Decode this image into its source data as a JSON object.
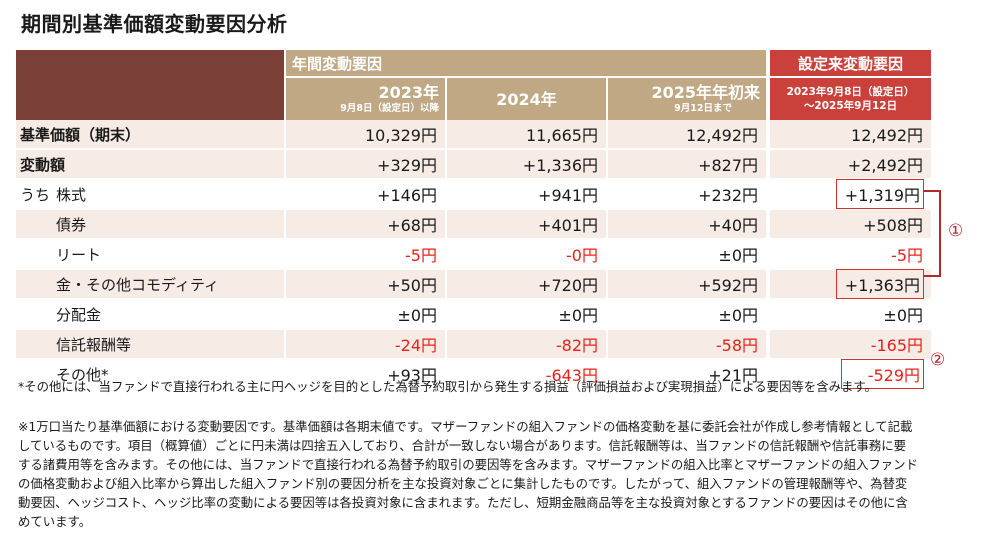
{
  "title": "期間別基準価額変動要因分析",
  "header": {
    "annual_label": "年間変動要因",
    "since_label": "設定来変動要因",
    "col1_year": "2023年",
    "col1_note": "9月8日（設定日）以降",
    "col2_year": "2024年",
    "col3_year": "2025年年初来",
    "col3_note": "9月12日まで",
    "since_note_line1": "2023年9月8日（設定日）",
    "since_note_line2": "～2025年9月12日"
  },
  "rows": [
    {
      "prefix": "",
      "label": "基準価額（期末）",
      "values": [
        "10,329円",
        "11,665円",
        "12,492円",
        "12,492円"
      ]
    },
    {
      "prefix": "",
      "label": "変動額",
      "values": [
        "+329円",
        "+1,336円",
        "+827円",
        "+2,492円"
      ]
    },
    {
      "prefix": "うち",
      "label": "株式",
      "values": [
        "+146円",
        "+941円",
        "+232円",
        "+1,319円"
      ]
    },
    {
      "prefix": "",
      "label": "債券",
      "values": [
        "+68円",
        "+401円",
        "+40円",
        "+508円"
      ]
    },
    {
      "prefix": "",
      "label": "リート",
      "values": [
        "-5円",
        "-0円",
        "±0円",
        "-5円"
      ]
    },
    {
      "prefix": "",
      "label": "金・その他コモディティ",
      "values": [
        "+50円",
        "+720円",
        "+592円",
        "+1,363円"
      ]
    },
    {
      "prefix": "",
      "label": "分配金",
      "values": [
        "±0円",
        "±0円",
        "±0円",
        "±0円"
      ]
    },
    {
      "prefix": "",
      "label": "信託報酬等",
      "values": [
        "-24円",
        "-82円",
        "-58円",
        "-165円"
      ]
    },
    {
      "prefix": "",
      "label": "その他*",
      "values": [
        "+93円",
        "-643円",
        "+21円",
        "-529円"
      ]
    }
  ],
  "annotations": {
    "circle1": "①",
    "circle2": "②"
  },
  "notes": {
    "footnote_a": "*その他には、当ファンドで直接行われる主に円ヘッジを目的とした為替予約取引から発生する損益（評価損益および実現損益）による要因等を含みます。",
    "footnote_b": "※1万口当たり基準価額における変動要因です。基準価額は各期末値です。マザーファンドの組入ファンドの価格変動を基に委託会社が作成し参考情報として記載しているものです。項目（概算値）ごとに円未満は四捨五入しており、合計が一致しない場合があります。信託報酬等は、当ファンドの信託報酬や信託事務に要する諸費用等を含みます。その他には、当ファンドで直接行われる為替予約取引の要因等を含みます。マザーファンドの組入比率とマザーファンドの組入ファンドの価格変動および組入比率から算出した組入ファンド別の要因分析を主な投資対象ごとに集計したものです。したがって、組入ファンドの管理報酬等や、為替変動要因、ヘッジコスト、ヘッジ比率の変動による要因等は各投資対象に含まれます。ただし、短期金融商品等を主な投資対象とするファンドの要因はその他に含めています。"
  },
  "colors": {
    "corner": "#7b4038",
    "annual_header": "#bfa883",
    "since_header": "#c9413a",
    "row_shade": "#f6ebe5",
    "negative": "#e8201a",
    "highlight": "#b3282a"
  }
}
